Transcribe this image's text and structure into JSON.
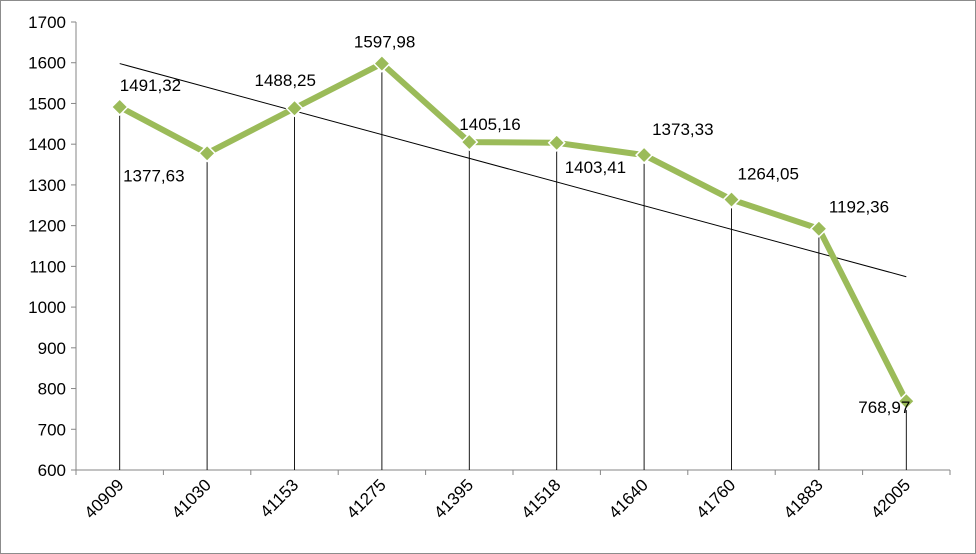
{
  "chart_data": {
    "type": "line",
    "categories": [
      "40909",
      "41030",
      "41153",
      "41275",
      "41395",
      "41518",
      "41640",
      "41760",
      "41883",
      "42005"
    ],
    "series": [
      {
        "values": [
          1491.32,
          1377.63,
          1488.25,
          1597.98,
          1405.16,
          1403.41,
          1373.33,
          1264.05,
          1192.36,
          768.97
        ],
        "color": "#9bbb59"
      }
    ],
    "data_labels": [
      "1491,32",
      "1377,63",
      "1488,25",
      "1597,98",
      "1405,16",
      "1403,41",
      "1373,33",
      "1264,05",
      "1192,36",
      "768,97"
    ],
    "y_ticks": [
      "600",
      "700",
      "800",
      "900",
      "1000",
      "1100",
      "1200",
      "1300",
      "1400",
      "1500",
      "1600",
      "1700"
    ],
    "ylim": [
      600,
      1700
    ],
    "trendline": {
      "type": "linear",
      "color": "#000000"
    },
    "drop_lines": true,
    "grid": false,
    "legend": "none",
    "marker": "diamond",
    "x_tick_rotation": -45
  }
}
